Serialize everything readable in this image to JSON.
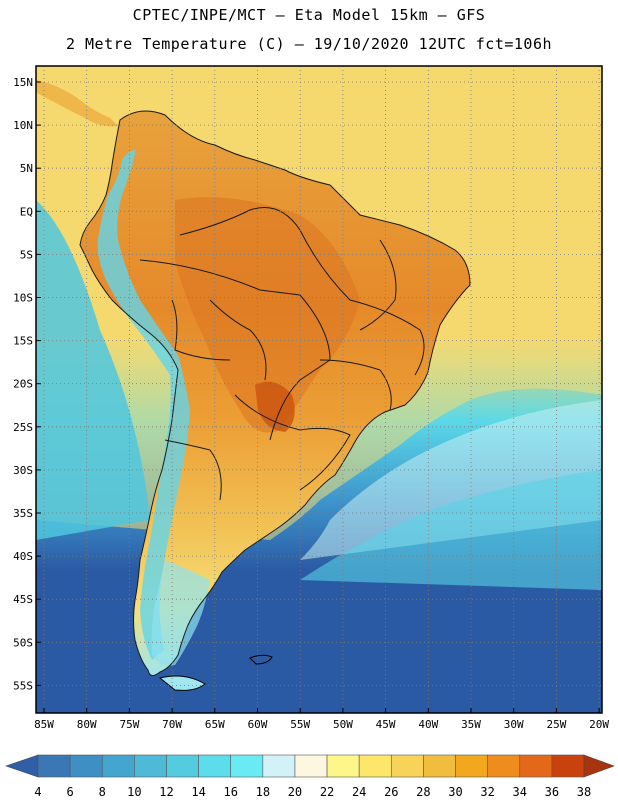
{
  "header": {
    "title_line1": "CPTEC/INPE/MCT –  Eta Model 15km – GFS",
    "title_line2": "2 Metre Temperature (C) – 19/10/2020 12UTC fct=106h"
  },
  "map": {
    "lat_labels": [
      "15N",
      "10N",
      "5N",
      "EQ",
      "5S",
      "10S",
      "15S",
      "20S",
      "25S",
      "30S",
      "35S",
      "40S",
      "45S",
      "50S",
      "55S"
    ],
    "lon_labels": [
      "85W",
      "80W",
      "75W",
      "70W",
      "65W",
      "60W",
      "55W",
      "50W",
      "45W",
      "40W",
      "35W",
      "30W",
      "25W",
      "20W"
    ]
  },
  "colorbar": {
    "labels": [
      "4",
      "6",
      "8",
      "10",
      "12",
      "14",
      "16",
      "18",
      "20",
      "22",
      "24",
      "26",
      "28",
      "30",
      "32",
      "34",
      "36",
      "38"
    ],
    "colors": [
      "#3a78b5",
      "#3d8fc4",
      "#44a5cf",
      "#4fb9d8",
      "#55cbe0",
      "#5ddceb",
      "#6aeaf3",
      "#d2f2f7",
      "#fdf6e0",
      "#fff68a",
      "#fde66a",
      "#f7d35a",
      "#f0bd3e",
      "#f2a81c",
      "#ef8c1e",
      "#e4681a",
      "#c9420d"
    ],
    "end_low": "#2f5fa6",
    "end_high": "#a8330f"
  },
  "colors": {
    "ocean_deep": "#2a5aa4",
    "ocean_mid": "#3c90c9",
    "ocean_cyan": "#5ad8e8",
    "warm_sea": "#f3d66c",
    "land_hot": "#e08228",
    "land_warm": "#efb64a",
    "andes": "#63d7ee"
  }
}
